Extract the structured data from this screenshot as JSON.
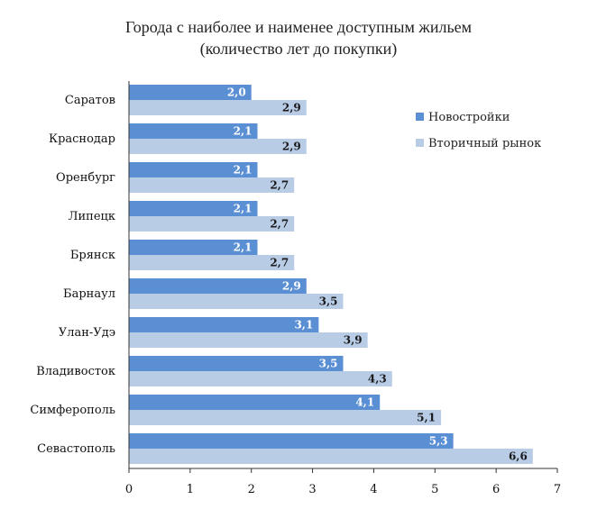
{
  "chart_data": {
    "type": "bar",
    "orientation": "horizontal",
    "title": "Города с наиболее и наименее доступным жильем",
    "subtitle": "(количество лет до покупки)",
    "categories": [
      "Саратов",
      "Краснодар",
      "Оренбург",
      "Липецк",
      "Брянск",
      "Барнаул",
      "Улан-Удэ",
      "Владивосток",
      "Симферополь",
      "Севастополь"
    ],
    "series": [
      {
        "name": "Новостройки",
        "color": "#5b8fd4",
        "values": [
          2.0,
          2.1,
          2.1,
          2.1,
          2.1,
          2.9,
          3.1,
          3.5,
          4.1,
          5.3
        ],
        "labels": [
          "2,0",
          "2,1",
          "2,1",
          "2,1",
          "2,1",
          "2,9",
          "3,1",
          "3,5",
          "4,1",
          "5,3"
        ]
      },
      {
        "name": "Вторичный рынок",
        "color": "#b8cce6",
        "values": [
          2.9,
          2.9,
          2.7,
          2.7,
          2.7,
          3.5,
          3.9,
          4.3,
          5.1,
          6.6
        ],
        "labels": [
          "2,9",
          "2,9",
          "2,7",
          "2,7",
          "2,7",
          "3,5",
          "3,9",
          "4,3",
          "5,1",
          "6,6"
        ]
      }
    ],
    "xlim": [
      0,
      7
    ],
    "xticks": [
      "0",
      "1",
      "2",
      "3",
      "4",
      "5",
      "6",
      "7"
    ],
    "grid": false,
    "legend_position": "top-right"
  }
}
